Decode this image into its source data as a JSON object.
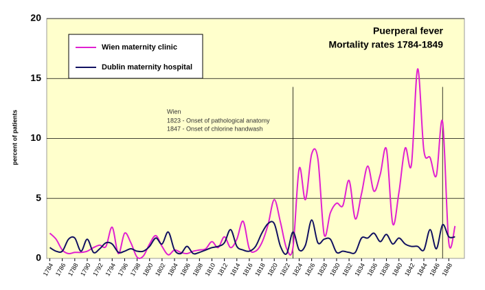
{
  "chart_data": {
    "type": "line",
    "title": [
      "Puerperal fever",
      "Mortality rates 1784-1849"
    ],
    "y_label": "percent of patients",
    "annotation": [
      "Wien",
      "1823 - Onset of pathological anatomy",
      "1847 - Onset of chlorine handwash"
    ],
    "vlines": [
      {
        "x": 1823,
        "y": 14.3
      },
      {
        "x": 1847,
        "y": 14.3
      }
    ],
    "x": [
      1784,
      1785,
      1786,
      1787,
      1788,
      1789,
      1790,
      1791,
      1792,
      1793,
      1794,
      1795,
      1796,
      1797,
      1798,
      1799,
      1800,
      1801,
      1802,
      1803,
      1804,
      1805,
      1806,
      1807,
      1808,
      1809,
      1810,
      1811,
      1812,
      1813,
      1814,
      1815,
      1816,
      1817,
      1818,
      1819,
      1820,
      1821,
      1822,
      1823,
      1824,
      1825,
      1826,
      1827,
      1828,
      1829,
      1830,
      1831,
      1832,
      1833,
      1834,
      1835,
      1836,
      1837,
      1838,
      1839,
      1840,
      1841,
      1842,
      1843,
      1844,
      1845,
      1846,
      1847,
      1848,
      1849
    ],
    "series": [
      {
        "name": "Wien maternity clinic",
        "color": "#e020d0",
        "values": [
          2.1,
          1.6,
          0.7,
          0.4,
          0.5,
          0.5,
          0.6,
          0.9,
          1.1,
          1.0,
          2.6,
          0.4,
          2.1,
          1.3,
          0.1,
          0.2,
          1.2,
          1.9,
          1.0,
          0.3,
          0.7,
          0.5,
          0.4,
          0.6,
          0.7,
          0.8,
          1.4,
          0.9,
          1.8,
          0.9,
          1.6,
          3.1,
          0.8,
          0.6,
          1.3,
          2.8,
          4.9,
          3.0,
          0.8,
          0.9,
          7.5,
          4.9,
          8.7,
          8.3,
          2.0,
          3.8,
          4.6,
          4.4,
          6.5,
          3.3,
          5.4,
          7.7,
          5.6,
          7.0,
          9.1,
          2.9,
          5.5,
          9.2,
          7.8,
          15.8,
          9.0,
          8.4,
          6.9,
          11.4,
          1.3,
          2.7
        ]
      },
      {
        "name": "Dublin maternity hospital",
        "color": "#101060",
        "values": [
          0.9,
          0.6,
          0.6,
          1.6,
          1.7,
          0.6,
          1.6,
          0.5,
          0.8,
          1.3,
          1.2,
          0.5,
          0.6,
          0.8,
          0.6,
          0.6,
          1.0,
          1.7,
          1.2,
          2.2,
          0.7,
          0.4,
          1.0,
          0.4,
          0.5,
          0.7,
          0.9,
          1.0,
          1.3,
          2.4,
          1.0,
          0.7,
          0.6,
          1.0,
          2.1,
          2.9,
          2.9,
          1.0,
          0.4,
          2.2,
          0.7,
          1.1,
          3.2,
          1.3,
          1.6,
          1.6,
          0.5,
          0.6,
          0.5,
          0.5,
          1.7,
          1.7,
          2.1,
          1.4,
          2.0,
          1.2,
          1.7,
          1.2,
          1.0,
          1.0,
          0.7,
          2.4,
          0.8,
          2.8,
          1.8,
          1.8
        ]
      }
    ],
    "xlim": [
      1783.5,
      1850.5
    ],
    "xticks": [
      1784,
      1786,
      1788,
      1790,
      1792,
      1794,
      1796,
      1798,
      1800,
      1802,
      1804,
      1806,
      1808,
      1810,
      1812,
      1814,
      1816,
      1818,
      1820,
      1822,
      1824,
      1826,
      1828,
      1830,
      1832,
      1834,
      1836,
      1838,
      1840,
      1842,
      1844,
      1846,
      1848
    ],
    "ylim": [
      0,
      20
    ],
    "yticks": [
      0,
      5,
      10,
      15,
      20
    ],
    "grid": true,
    "legend": "upper left"
  }
}
